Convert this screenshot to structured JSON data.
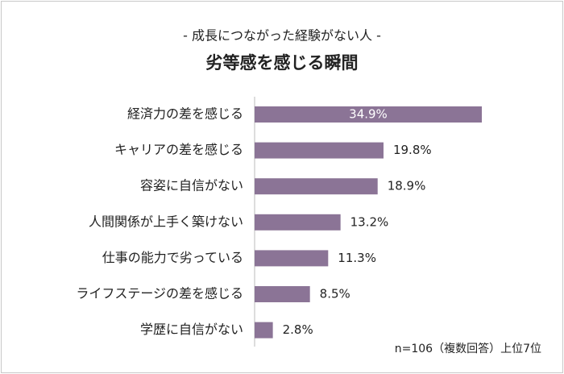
{
  "chart_data": {
    "type": "bar",
    "orientation": "horizontal",
    "subtitle": "- 成長につながった経験がない人 -",
    "title": "劣等感を感じる瞬間",
    "categories": [
      "経済力の差を感じる",
      "キャリアの差を感じる",
      "容姿に自信がない",
      "人間関係が上手く築けない",
      "仕事の能力で劣っている",
      "ライフステージの差を感じる",
      "学歴に自信がない"
    ],
    "values": [
      34.9,
      19.8,
      18.9,
      13.2,
      11.3,
      8.5,
      2.8
    ],
    "value_labels": [
      "34.9%",
      "19.8%",
      "18.9%",
      "13.2%",
      "11.3%",
      "8.5%",
      "2.8%"
    ],
    "color": "#8b7496",
    "note": "n=106（複数回答）上位7位"
  }
}
